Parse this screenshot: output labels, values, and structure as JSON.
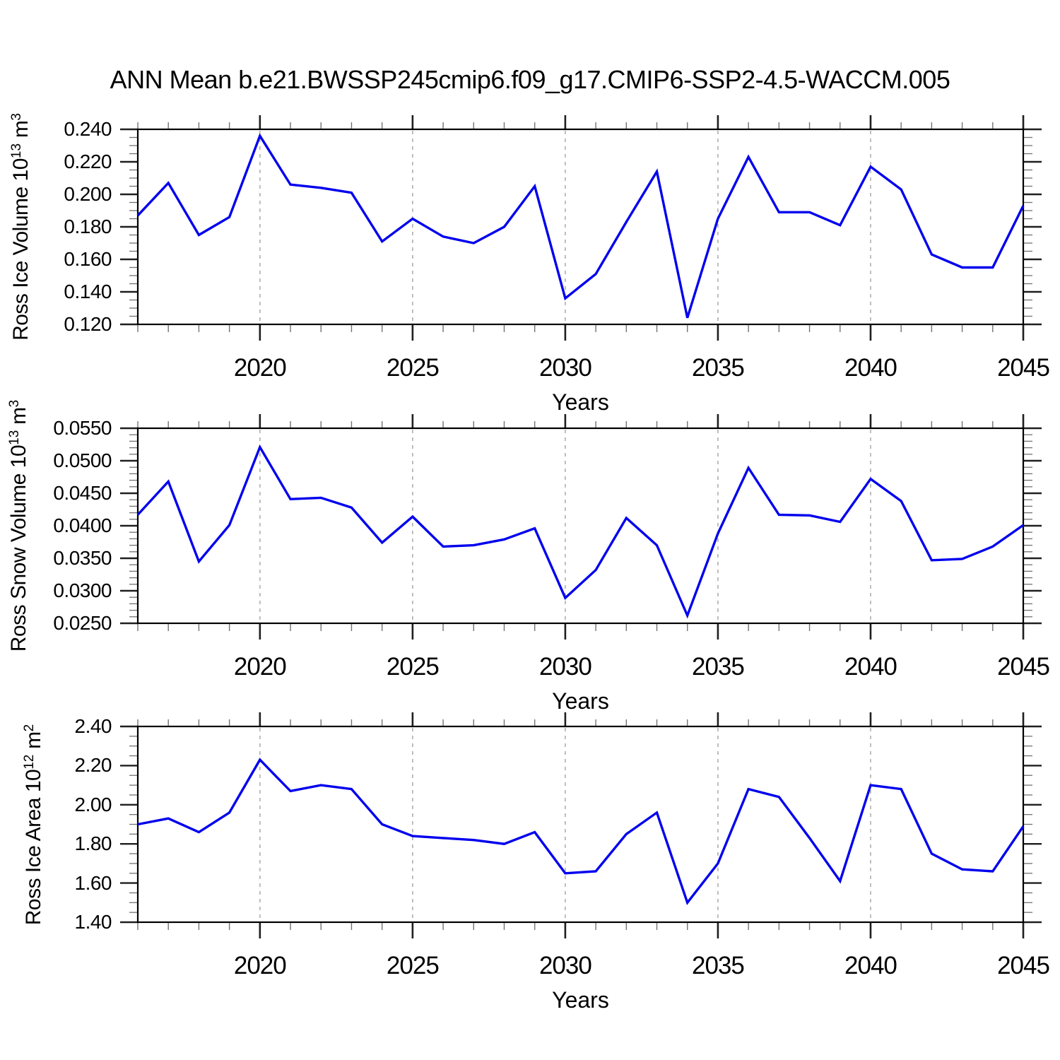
{
  "title": "ANN Mean b.e21.BWSSP245cmip6.f09_g17.CMIP6-SSP2-4.5-WACCM.005",
  "colors": {
    "line": "#0000ee",
    "axis": "#000000",
    "grid": "#a9a9a9",
    "major_tick": "#1f1f1f",
    "minor_tick": "#737373"
  },
  "chart_data": [
    {
      "type": "line",
      "title": "ANN Mean b.e21.BWSSP245cmip6.f09_g17.CMIP6-SSP2-4.5-WACCM.005",
      "xlabel": "Years",
      "ylabel": "Ross Ice Volume 10^13 m^3",
      "ylabel_segments": [
        {
          "t": "Ross Ice Volume 10"
        },
        {
          "t": "13",
          "sup": true
        },
        {
          "t": " m"
        },
        {
          "t": "3",
          "sup": true
        }
      ],
      "xlim": [
        2016,
        2045
      ],
      "ylim": [
        0.12,
        0.24
      ],
      "xticks": [
        2020,
        2025,
        2030,
        2035,
        2040,
        2045
      ],
      "xticklabels": [
        "2020",
        "2025",
        "2030",
        "2035",
        "2040",
        "2045"
      ],
      "grid_years": [
        2020,
        2025,
        2030,
        2035,
        2040
      ],
      "x_minor_step": 1,
      "yticks": [
        0.12,
        0.14,
        0.16,
        0.18,
        0.2,
        0.22,
        0.24
      ],
      "yticklabels": [
        "0.120",
        "0.140",
        "0.160",
        "0.180",
        "0.200",
        "0.220",
        "0.240"
      ],
      "y_minor_step": 0.005,
      "grid_on": "x-major-dashed",
      "legend": "none",
      "x": [
        2016,
        2017,
        2018,
        2019,
        2020,
        2021,
        2022,
        2023,
        2024,
        2025,
        2026,
        2027,
        2028,
        2029,
        2030,
        2031,
        2032,
        2033,
        2034,
        2035,
        2036,
        2037,
        2038,
        2039,
        2040,
        2041,
        2042,
        2043,
        2044,
        2045
      ],
      "values": [
        0.187,
        0.207,
        0.175,
        0.186,
        0.236,
        0.206,
        0.204,
        0.201,
        0.171,
        0.185,
        0.174,
        0.17,
        0.18,
        0.205,
        0.136,
        0.151,
        0.183,
        0.214,
        0.124,
        0.185,
        0.223,
        0.189,
        0.189,
        0.181,
        0.217,
        0.203,
        0.163,
        0.155,
        0.155,
        0.193
      ]
    },
    {
      "type": "line",
      "title": "",
      "xlabel": "Years",
      "ylabel": "Ross Snow Volume 10^13 m^3",
      "ylabel_segments": [
        {
          "t": "Ross Snow Volume 10"
        },
        {
          "t": "13",
          "sup": true
        },
        {
          "t": " m"
        },
        {
          "t": "3",
          "sup": true
        }
      ],
      "xlim": [
        2016,
        2045
      ],
      "ylim": [
        0.025,
        0.055
      ],
      "xticks": [
        2020,
        2025,
        2030,
        2035,
        2040,
        2045
      ],
      "xticklabels": [
        "2020",
        "2025",
        "2030",
        "2035",
        "2040",
        "2045"
      ],
      "grid_years": [
        2020,
        2025,
        2030,
        2035,
        2040
      ],
      "x_minor_step": 1,
      "yticks": [
        0.025,
        0.03,
        0.035,
        0.04,
        0.045,
        0.05,
        0.055
      ],
      "yticklabels": [
        "0.0250",
        "0.0300",
        "0.0350",
        "0.0400",
        "0.0450",
        "0.0500",
        "0.0550"
      ],
      "y_minor_step": 0.001,
      "grid_on": "x-major-dashed",
      "legend": "none",
      "x": [
        2016,
        2017,
        2018,
        2019,
        2020,
        2021,
        2022,
        2023,
        2024,
        2025,
        2026,
        2027,
        2028,
        2029,
        2030,
        2031,
        2032,
        2033,
        2034,
        2035,
        2036,
        2037,
        2038,
        2039,
        2040,
        2041,
        2042,
        2043,
        2044,
        2045
      ],
      "values": [
        0.0417,
        0.0468,
        0.0345,
        0.0401,
        0.0521,
        0.0441,
        0.0443,
        0.0428,
        0.0374,
        0.0414,
        0.0368,
        0.037,
        0.0379,
        0.0396,
        0.0289,
        0.0332,
        0.0412,
        0.037,
        0.0262,
        0.0388,
        0.0489,
        0.0417,
        0.0416,
        0.0406,
        0.0472,
        0.0438,
        0.0347,
        0.0349,
        0.0368,
        0.0401
      ]
    },
    {
      "type": "line",
      "title": "",
      "xlabel": "Years",
      "ylabel": "Ross Ice Area 10^12 m^2",
      "ylabel_segments": [
        {
          "t": "Ross Ice Area 10"
        },
        {
          "t": "12",
          "sup": true
        },
        {
          "t": " m"
        },
        {
          "t": "2",
          "sup": true
        }
      ],
      "xlim": [
        2016,
        2045
      ],
      "ylim": [
        1.4,
        2.4
      ],
      "xticks": [
        2020,
        2025,
        2030,
        2035,
        2040,
        2045
      ],
      "xticklabels": [
        "2020",
        "2025",
        "2030",
        "2035",
        "2040",
        "2045"
      ],
      "grid_years": [
        2020,
        2025,
        2030,
        2035,
        2040
      ],
      "x_minor_step": 1,
      "yticks": [
        1.4,
        1.6,
        1.8,
        2.0,
        2.2,
        2.4
      ],
      "yticklabels": [
        "1.40",
        "1.60",
        "1.80",
        "2.00",
        "2.20",
        "2.40"
      ],
      "y_minor_step": 0.05,
      "grid_on": "x-major-dashed",
      "legend": "none",
      "x": [
        2016,
        2017,
        2018,
        2019,
        2020,
        2021,
        2022,
        2023,
        2024,
        2025,
        2026,
        2027,
        2028,
        2029,
        2030,
        2031,
        2032,
        2033,
        2034,
        2035,
        2036,
        2037,
        2038,
        2039,
        2040,
        2041,
        2042,
        2043,
        2044,
        2045
      ],
      "values": [
        1.9,
        1.93,
        1.86,
        1.96,
        2.23,
        2.07,
        2.1,
        2.08,
        1.9,
        1.84,
        1.83,
        1.82,
        1.8,
        1.86,
        1.65,
        1.66,
        1.85,
        1.96,
        1.5,
        1.7,
        2.08,
        2.04,
        1.83,
        1.61,
        2.1,
        2.08,
        1.75,
        1.67,
        1.66,
        1.89
      ]
    }
  ]
}
